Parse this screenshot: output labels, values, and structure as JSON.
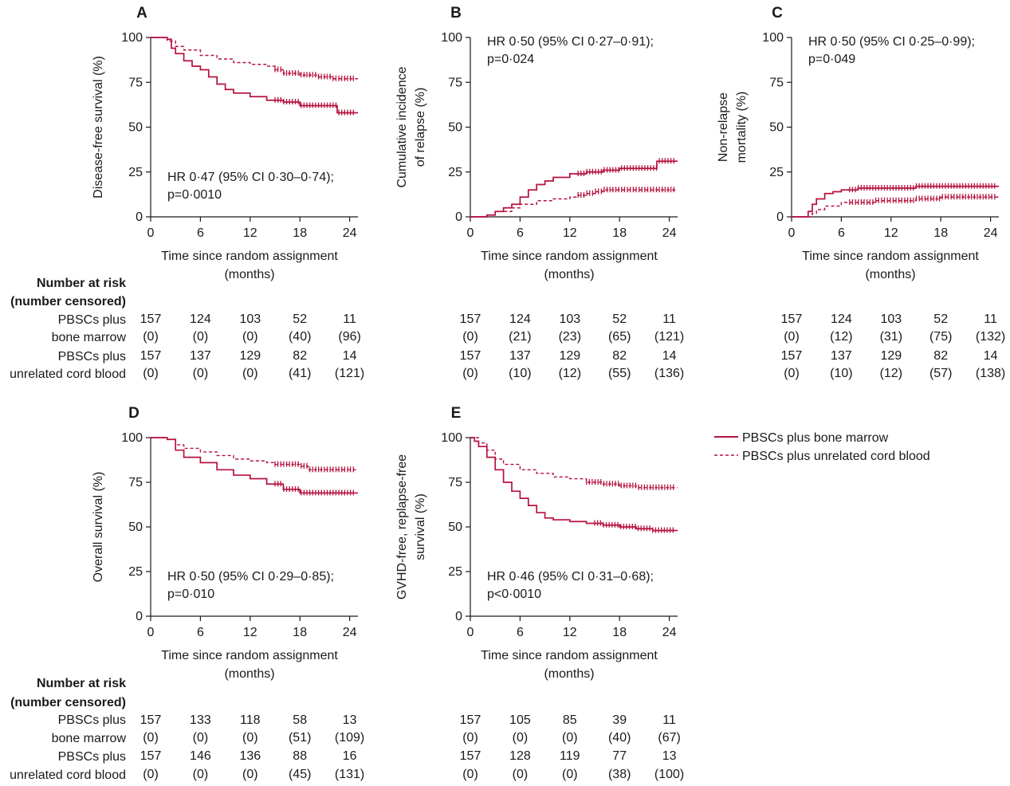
{
  "colors": {
    "series": "#b5123e",
    "axis": "#1a1a1a",
    "text": "#1a1a1a"
  },
  "legend": {
    "items": [
      {
        "label": "PBSCs plus bone marrow",
        "style": "solid"
      },
      {
        "label": "PBSCs plus unrelated cord blood",
        "style": "dashed"
      }
    ]
  },
  "risk_header": {
    "line1": "Number at risk",
    "line2": "(number censored)"
  },
  "risk_group_labels": {
    "bm_line1": "PBSCs plus",
    "bm_line2": "bone marrow",
    "cb_line1": "PBSCs plus",
    "cb_line2": "unrelated cord blood"
  },
  "chart_data": [
    {
      "id": "A",
      "letter": "A",
      "type": "line",
      "ylabel_lines": [
        "Disease-free survival (%)"
      ],
      "xlabel_lines": [
        "Time since random assignment",
        "(months)"
      ],
      "x_ticks": [
        0,
        6,
        12,
        18,
        24
      ],
      "y_ticks": [
        0,
        25,
        50,
        75,
        100
      ],
      "xlim": [
        0,
        25
      ],
      "ylim": [
        0,
        100
      ],
      "hr_lines": [
        "HR 0·47 (95% CI 0·30–0·74);",
        "p=0·0010"
      ],
      "hr_anchor": "lower",
      "series": [
        {
          "name": "PBSCs plus bone marrow",
          "style": "solid",
          "points": [
            [
              0,
              100
            ],
            [
              1.5,
              100
            ],
            [
              2,
              99
            ],
            [
              2.5,
              94
            ],
            [
              3,
              91
            ],
            [
              4,
              87
            ],
            [
              5,
              84
            ],
            [
              6,
              82
            ],
            [
              7,
              78
            ],
            [
              8,
              74
            ],
            [
              9,
              71
            ],
            [
              10,
              69
            ],
            [
              12,
              67
            ],
            [
              14,
              65
            ],
            [
              16,
              64
            ],
            [
              18,
              62
            ],
            [
              20,
              62
            ],
            [
              22,
              62
            ],
            [
              22.5,
              58
            ],
            [
              25,
              58
            ]
          ],
          "censor_from": 15
        },
        {
          "name": "PBSCs plus unrelated cord blood",
          "style": "dashed",
          "points": [
            [
              0,
              100
            ],
            [
              1.5,
              100
            ],
            [
              2,
              98
            ],
            [
              3,
              95
            ],
            [
              4,
              93
            ],
            [
              6,
              90
            ],
            [
              8,
              88
            ],
            [
              10,
              86
            ],
            [
              12,
              85
            ],
            [
              14,
              84
            ],
            [
              15,
              82
            ],
            [
              16,
              80
            ],
            [
              18,
              79
            ],
            [
              20,
              78
            ],
            [
              22,
              77
            ],
            [
              25,
              77
            ]
          ],
          "censor_from": 15
        }
      ],
      "risk": {
        "bm_n": [
          "157",
          "124",
          "103",
          "52",
          "11"
        ],
        "bm_c": [
          "(0)",
          "(0)",
          "(0)",
          "(40)",
          "(96)"
        ],
        "cb_n": [
          "157",
          "137",
          "129",
          "82",
          "14"
        ],
        "cb_c": [
          "(0)",
          "(0)",
          "(0)",
          "(41)",
          "(121)"
        ]
      }
    },
    {
      "id": "B",
      "letter": "B",
      "type": "line",
      "ylabel_lines": [
        "Cumulative incidence",
        "of relapse (%)"
      ],
      "xlabel_lines": [
        "Time since random assignment",
        "(months)"
      ],
      "x_ticks": [
        0,
        6,
        12,
        18,
        24
      ],
      "y_ticks": [
        0,
        25,
        50,
        75,
        100
      ],
      "xlim": [
        0,
        25
      ],
      "ylim": [
        0,
        100
      ],
      "hr_lines": [
        "HR 0·50 (95% CI 0·27–0·91);",
        "p=0·024"
      ],
      "hr_anchor": "upper",
      "series": [
        {
          "name": "PBSCs plus bone marrow",
          "style": "solid",
          "points": [
            [
              0,
              0
            ],
            [
              1.5,
              0
            ],
            [
              2,
              1
            ],
            [
              3,
              3
            ],
            [
              4,
              5
            ],
            [
              5,
              7
            ],
            [
              6,
              11
            ],
            [
              7,
              15
            ],
            [
              8,
              18
            ],
            [
              9,
              20
            ],
            [
              10,
              22
            ],
            [
              12,
              24
            ],
            [
              14,
              25
            ],
            [
              16,
              26
            ],
            [
              18,
              27
            ],
            [
              20,
              27
            ],
            [
              22,
              27
            ],
            [
              22.5,
              31
            ],
            [
              25,
              31
            ]
          ],
          "censor_from": 13
        },
        {
          "name": "PBSCs plus unrelated cord blood",
          "style": "dashed",
          "points": [
            [
              0,
              0
            ],
            [
              1.5,
              0
            ],
            [
              2,
              1
            ],
            [
              3,
              3
            ],
            [
              5,
              5
            ],
            [
              6,
              7
            ],
            [
              8,
              9
            ],
            [
              10,
              10
            ],
            [
              12,
              11
            ],
            [
              13,
              12
            ],
            [
              14,
              13
            ],
            [
              15,
              14
            ],
            [
              16,
              15
            ],
            [
              20,
              15
            ],
            [
              25,
              15
            ]
          ],
          "censor_from": 13
        }
      ],
      "risk": {
        "bm_n": [
          "157",
          "124",
          "103",
          "52",
          "11"
        ],
        "bm_c": [
          "(0)",
          "(21)",
          "(23)",
          "(65)",
          "(121)"
        ],
        "cb_n": [
          "157",
          "137",
          "129",
          "82",
          "14"
        ],
        "cb_c": [
          "(0)",
          "(10)",
          "(12)",
          "(55)",
          "(136)"
        ]
      }
    },
    {
      "id": "C",
      "letter": "C",
      "type": "line",
      "ylabel_lines": [
        "Non-relapse",
        "mortality (%)"
      ],
      "xlabel_lines": [
        "Time since random assignment",
        "(months)"
      ],
      "x_ticks": [
        0,
        6,
        12,
        18,
        24
      ],
      "y_ticks": [
        0,
        25,
        50,
        75,
        100
      ],
      "xlim": [
        0,
        25
      ],
      "ylim": [
        0,
        100
      ],
      "hr_lines": [
        "HR 0·50 (95% CI 0·25–0·99);",
        "p=0·049"
      ],
      "hr_anchor": "upper",
      "series": [
        {
          "name": "PBSCs plus bone marrow",
          "style": "solid",
          "points": [
            [
              0,
              0
            ],
            [
              1.5,
              0
            ],
            [
              2,
              3
            ],
            [
              2.5,
              7
            ],
            [
              3,
              10
            ],
            [
              4,
              13
            ],
            [
              5,
              14
            ],
            [
              6,
              15
            ],
            [
              8,
              16
            ],
            [
              12,
              16
            ],
            [
              15,
              17
            ],
            [
              25,
              17
            ]
          ],
          "censor_from": 7
        },
        {
          "name": "PBSCs plus unrelated cord blood",
          "style": "dashed",
          "points": [
            [
              0,
              0
            ],
            [
              2,
              0
            ],
            [
              2.5,
              2
            ],
            [
              3,
              4
            ],
            [
              4,
              6
            ],
            [
              6,
              8
            ],
            [
              8,
              8
            ],
            [
              10,
              9
            ],
            [
              12,
              9
            ],
            [
              15,
              10
            ],
            [
              18,
              11
            ],
            [
              25,
              11
            ]
          ],
          "censor_from": 7
        }
      ],
      "risk": {
        "bm_n": [
          "157",
          "124",
          "103",
          "52",
          "11"
        ],
        "bm_c": [
          "(0)",
          "(12)",
          "(31)",
          "(75)",
          "(132)"
        ],
        "cb_n": [
          "157",
          "137",
          "129",
          "82",
          "14"
        ],
        "cb_c": [
          "(0)",
          "(10)",
          "(12)",
          "(57)",
          "(138)"
        ]
      }
    },
    {
      "id": "D",
      "letter": "D",
      "type": "line",
      "ylabel_lines": [
        "Overall survival (%)"
      ],
      "xlabel_lines": [
        "Time since random assignment",
        "(months)"
      ],
      "x_ticks": [
        0,
        6,
        12,
        18,
        24
      ],
      "y_ticks": [
        0,
        25,
        50,
        75,
        100
      ],
      "xlim": [
        0,
        25
      ],
      "ylim": [
        0,
        100
      ],
      "hr_lines": [
        "HR 0·50 (95% CI 0·29–0·85);",
        "p=0·010"
      ],
      "hr_anchor": "lower",
      "series": [
        {
          "name": "PBSCs plus bone marrow",
          "style": "solid",
          "points": [
            [
              0,
              100
            ],
            [
              1.5,
              100
            ],
            [
              2,
              99
            ],
            [
              3,
              93
            ],
            [
              4,
              89
            ],
            [
              6,
              86
            ],
            [
              8,
              82
            ],
            [
              10,
              79
            ],
            [
              12,
              77
            ],
            [
              14,
              74
            ],
            [
              16,
              71
            ],
            [
              18,
              69
            ],
            [
              20,
              69
            ],
            [
              25,
              69
            ]
          ],
          "censor_from": 15
        },
        {
          "name": "PBSCs plus unrelated cord blood",
          "style": "dashed",
          "points": [
            [
              0,
              100
            ],
            [
              1.5,
              100
            ],
            [
              2,
              99
            ],
            [
              3,
              96
            ],
            [
              4,
              94
            ],
            [
              6,
              92
            ],
            [
              8,
              90
            ],
            [
              10,
              88
            ],
            [
              12,
              87
            ],
            [
              14,
              86
            ],
            [
              15,
              85
            ],
            [
              16,
              85
            ],
            [
              18,
              84
            ],
            [
              19,
              82
            ],
            [
              25,
              82
            ]
          ],
          "censor_from": 15
        }
      ],
      "risk": {
        "bm_n": [
          "157",
          "133",
          "118",
          "58",
          "13"
        ],
        "bm_c": [
          "(0)",
          "(0)",
          "(0)",
          "(51)",
          "(109)"
        ],
        "cb_n": [
          "157",
          "146",
          "136",
          "88",
          "16"
        ],
        "cb_c": [
          "(0)",
          "(0)",
          "(0)",
          "(45)",
          "(131)"
        ]
      }
    },
    {
      "id": "E",
      "letter": "E",
      "type": "line",
      "ylabel_lines": [
        "GVHD-free, replapse-free",
        "survival (%)"
      ],
      "xlabel_lines": [
        "Time since random assignment",
        "(months)"
      ],
      "x_ticks": [
        0,
        6,
        12,
        18,
        24
      ],
      "y_ticks": [
        0,
        25,
        50,
        75,
        100
      ],
      "xlim": [
        0,
        25
      ],
      "ylim": [
        0,
        100
      ],
      "hr_lines": [
        "HR 0·46 (95% CI 0·31–0·68);",
        "p<0·0010"
      ],
      "hr_anchor": "lower",
      "series": [
        {
          "name": "PBSCs plus bone marrow",
          "style": "solid",
          "points": [
            [
              0,
              100
            ],
            [
              0.5,
              98
            ],
            [
              1,
              95
            ],
            [
              2,
              89
            ],
            [
              3,
              82
            ],
            [
              4,
              75
            ],
            [
              5,
              70
            ],
            [
              6,
              66
            ],
            [
              7,
              62
            ],
            [
              8,
              58
            ],
            [
              9,
              55
            ],
            [
              10,
              54
            ],
            [
              12,
              53
            ],
            [
              14,
              52
            ],
            [
              16,
              51
            ],
            [
              18,
              50
            ],
            [
              20,
              49
            ],
            [
              22,
              48
            ],
            [
              25,
              48
            ]
          ],
          "censor_from": 15
        },
        {
          "name": "PBSCs plus unrelated cord blood",
          "style": "dashed",
          "points": [
            [
              0,
              100
            ],
            [
              1,
              97
            ],
            [
              2,
              93
            ],
            [
              3,
              88
            ],
            [
              4,
              85
            ],
            [
              6,
              82
            ],
            [
              8,
              80
            ],
            [
              10,
              78
            ],
            [
              12,
              77
            ],
            [
              14,
              75
            ],
            [
              16,
              74
            ],
            [
              18,
              73
            ],
            [
              20,
              72
            ],
            [
              25,
              72
            ]
          ],
          "censor_from": 14
        }
      ],
      "risk": {
        "bm_n": [
          "157",
          "105",
          "85",
          "39",
          "11"
        ],
        "bm_c": [
          "(0)",
          "(0)",
          "(0)",
          "(40)",
          "(67)"
        ],
        "cb_n": [
          "157",
          "128",
          "119",
          "77",
          "13"
        ],
        "cb_c": [
          "(0)",
          "(0)",
          "(0)",
          "(38)",
          "(100)"
        ]
      }
    }
  ]
}
